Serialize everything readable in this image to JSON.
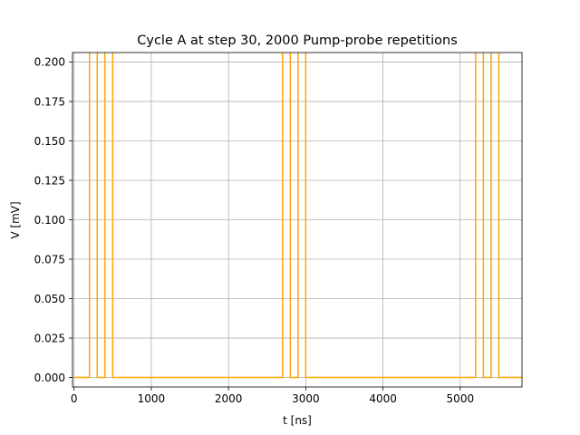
{
  "chart_data": {
    "type": "line",
    "title": "Cycle A at step 30, 2000 Pump-probe repetitions",
    "xlabel": "t [ns]",
    "ylabel": "V  [mV]",
    "xlim": [
      -20,
      5800
    ],
    "ylim": [
      -0.006,
      0.206
    ],
    "x_ticks": [
      0,
      1000,
      2000,
      3000,
      4000,
      5000
    ],
    "x_tick_labels": [
      "0",
      "1000",
      "2000",
      "3000",
      "4000",
      "5000"
    ],
    "y_ticks": [
      0.0,
      0.025,
      0.05,
      0.075,
      0.1,
      0.125,
      0.15,
      0.175,
      0.2
    ],
    "y_tick_labels": [
      "0.000",
      "0.025",
      "0.050",
      "0.075",
      "0.100",
      "0.125",
      "0.150",
      "0.175",
      "0.200"
    ],
    "grid": true,
    "series": [
      {
        "color": "#ffa500",
        "x": [
          0,
          200,
          200,
          300,
          300,
          400,
          400,
          500,
          500,
          2700,
          2700,
          2800,
          2800,
          2900,
          2900,
          3000,
          3000,
          5200,
          5200,
          5300,
          5300,
          5400,
          5400,
          5500,
          5500,
          5800
        ],
        "y": [
          0,
          0,
          0.21,
          0.21,
          0,
          0,
          0.21,
          0.21,
          0,
          0,
          0.21,
          0.21,
          0,
          0,
          0.21,
          0.21,
          0,
          0,
          0.21,
          0.21,
          0,
          0,
          0.21,
          0.21,
          0,
          0
        ]
      }
    ]
  }
}
